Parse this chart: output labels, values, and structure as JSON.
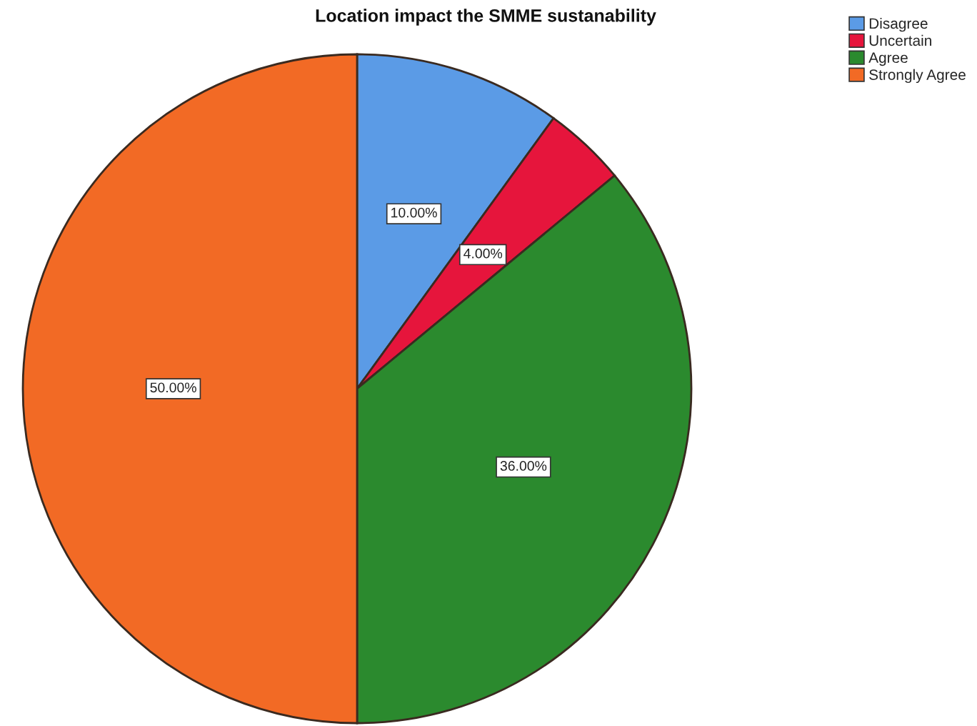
{
  "chart_data": {
    "type": "pie",
    "title": "Location impact the SMME sustanability",
    "categories": [
      "Disagree",
      "Uncertain",
      "Agree",
      "Strongly Agree"
    ],
    "values": [
      10,
      4,
      36,
      50
    ],
    "colors": [
      "#5b9be6",
      "#e6153c",
      "#2b8a2e",
      "#f26a25"
    ],
    "value_labels": [
      "10.00%",
      "4.00%",
      "36.00%",
      "50.00%"
    ],
    "legend": "top right"
  }
}
